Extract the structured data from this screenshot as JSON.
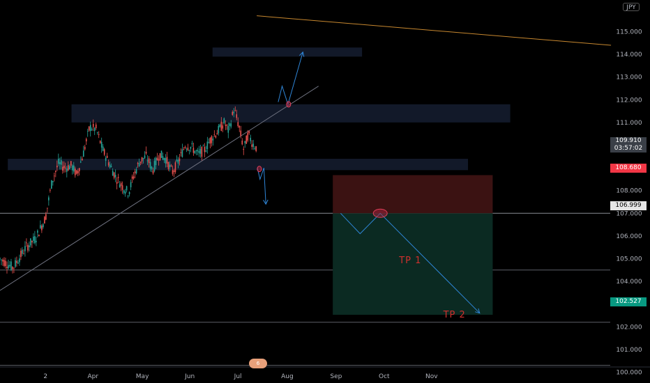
{
  "chart_data": {
    "type": "candlestick",
    "currency": "JPY",
    "y_axis": {
      "ticks": [
        "115.000",
        "114.000",
        "113.000",
        "112.000",
        "111.000",
        "110.000",
        "109.000",
        "108.000",
        "107.000",
        "106.000",
        "105.000",
        "104.000",
        "103.000",
        "102.000",
        "101.000",
        "100.000"
      ],
      "range": [
        99.3,
        115.5
      ]
    },
    "x_axis": {
      "ticks": [
        {
          "label": "2",
          "t": 0.07
        },
        {
          "label": "Apr",
          "t": 0.143
        },
        {
          "label": "May",
          "t": 0.219
        },
        {
          "label": "Jun",
          "t": 0.292
        },
        {
          "label": "Jul",
          "t": 0.366
        },
        {
          "label": "Aug",
          "t": 0.442
        },
        {
          "label": "Sep",
          "t": 0.517
        },
        {
          "label": "Oct",
          "t": 0.591
        },
        {
          "label": "Nov",
          "t": 0.664
        }
      ]
    },
    "price_path": [
      {
        "t": 0.0,
        "p": 105.0
      },
      {
        "t": 0.02,
        "p": 104.6
      },
      {
        "t": 0.04,
        "p": 105.5
      },
      {
        "t": 0.055,
        "p": 105.9
      },
      {
        "t": 0.07,
        "p": 106.8
      },
      {
        "t": 0.08,
        "p": 108.4
      },
      {
        "t": 0.09,
        "p": 109.2
      },
      {
        "t": 0.1,
        "p": 109.0
      },
      {
        "t": 0.11,
        "p": 109.1
      },
      {
        "t": 0.118,
        "p": 108.7
      },
      {
        "t": 0.128,
        "p": 109.6
      },
      {
        "t": 0.138,
        "p": 110.8
      },
      {
        "t": 0.148,
        "p": 110.7
      },
      {
        "t": 0.158,
        "p": 109.8
      },
      {
        "t": 0.168,
        "p": 109.2
      },
      {
        "t": 0.178,
        "p": 108.6
      },
      {
        "t": 0.188,
        "p": 108.2
      },
      {
        "t": 0.198,
        "p": 107.9
      },
      {
        "t": 0.205,
        "p": 108.6
      },
      {
        "t": 0.215,
        "p": 109.3
      },
      {
        "t": 0.225,
        "p": 109.5
      },
      {
        "t": 0.235,
        "p": 108.9
      },
      {
        "t": 0.245,
        "p": 109.6
      },
      {
        "t": 0.255,
        "p": 109.4
      },
      {
        "t": 0.265,
        "p": 108.8
      },
      {
        "t": 0.275,
        "p": 109.3
      },
      {
        "t": 0.285,
        "p": 110.0
      },
      {
        "t": 0.295,
        "p": 109.9
      },
      {
        "t": 0.305,
        "p": 109.6
      },
      {
        "t": 0.315,
        "p": 109.8
      },
      {
        "t": 0.325,
        "p": 110.3
      },
      {
        "t": 0.335,
        "p": 110.6
      },
      {
        "t": 0.345,
        "p": 111.0
      },
      {
        "t": 0.352,
        "p": 110.6
      },
      {
        "t": 0.36,
        "p": 111.6
      },
      {
        "t": 0.368,
        "p": 110.8
      },
      {
        "t": 0.375,
        "p": 109.8
      },
      {
        "t": 0.382,
        "p": 110.5
      },
      {
        "t": 0.388,
        "p": 110.1
      },
      {
        "t": 0.394,
        "p": 109.9
      }
    ],
    "current_price": "109.910",
    "countdown": "03:57:02",
    "price_labels": {
      "stop_loss": "108.680",
      "entry": "106.999",
      "target": "102.527"
    },
    "horizontal_lines": [
      106.999,
      104.5,
      102.2,
      100.3
    ],
    "trendline": {
      "t0": 0.0,
      "p0": 103.6,
      "t1": 0.49,
      "p1": 112.6
    },
    "upper_channel_line": {
      "t0": 0.395,
      "p0": 115.7,
      "t1": 0.94,
      "p1": 114.4
    },
    "zones": [
      {
        "t0": 0.11,
        "t1": 0.785,
        "p_top": 111.8,
        "p_bottom": 111.0
      },
      {
        "t0": 0.012,
        "t1": 0.72,
        "p_top": 109.4,
        "p_bottom": 108.9
      },
      {
        "t0": 0.327,
        "t1": 0.557,
        "p_top": 114.3,
        "p_bottom": 113.9
      }
    ],
    "position": {
      "t0": 0.512,
      "t1": 0.758,
      "stop": 108.68,
      "entry": 106.999,
      "target": 102.527
    },
    "projections": [
      {
        "points": [
          [
            0.428,
            111.9
          ],
          [
            0.434,
            112.6
          ],
          [
            0.443,
            111.8
          ],
          [
            0.466,
            114.1
          ]
        ]
      },
      {
        "points": [
          [
            0.396,
            109.0
          ],
          [
            0.4,
            108.5
          ],
          [
            0.406,
            109.0
          ],
          [
            0.409,
            107.4
          ]
        ]
      },
      {
        "points": [
          [
            0.524,
            107.0
          ],
          [
            0.554,
            106.1
          ],
          [
            0.585,
            107.0
          ],
          [
            0.738,
            102.6
          ]
        ]
      }
    ],
    "markers": [
      {
        "t": 0.444,
        "p": 111.8
      },
      {
        "t": 0.399,
        "p": 108.95
      },
      {
        "t": 0.585,
        "p": 107.0
      }
    ],
    "annotations": [
      {
        "text": "TP 1",
        "t": 0.614,
        "p": 104.9
      },
      {
        "text": "TP 2",
        "t": 0.682,
        "p": 102.5
      }
    ],
    "event_badge": "6",
    "grid": false
  }
}
